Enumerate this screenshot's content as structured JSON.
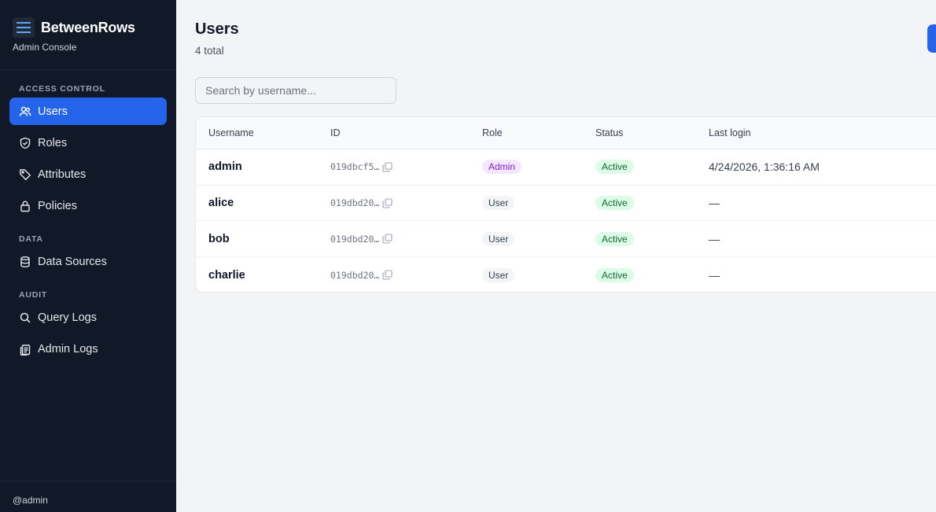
{
  "app": {
    "name": "BetweenRows",
    "subtitle": "Admin Console"
  },
  "sidebar": {
    "sections": [
      {
        "label": "ACCESS CONTROL"
      },
      {
        "label": "DATA"
      },
      {
        "label": "AUDIT"
      }
    ],
    "items": [
      {
        "label": "Users",
        "icon": "users-icon",
        "active": true
      },
      {
        "label": "Roles",
        "icon": "shield-icon"
      },
      {
        "label": "Attributes",
        "icon": "tag-icon"
      },
      {
        "label": "Policies",
        "icon": "lock-icon"
      },
      {
        "label": "Data Sources",
        "icon": "database-icon"
      },
      {
        "label": "Query Logs",
        "icon": "search-icon"
      },
      {
        "label": "Admin Logs",
        "icon": "clipboard-icon"
      }
    ],
    "footer_user": "@admin"
  },
  "page": {
    "title": "Users",
    "count": "4 total"
  },
  "search": {
    "placeholder": "Search by username..."
  },
  "table": {
    "columns": [
      "Username",
      "ID",
      "Role",
      "Status",
      "Last login"
    ],
    "rows": [
      {
        "username": "admin",
        "id": "019dbcf5…",
        "role": "Admin",
        "status": "Active",
        "last_login": "4/24/2026, 1:36:16 AM"
      },
      {
        "username": "alice",
        "id": "019dbd20…",
        "role": "User",
        "status": "Active",
        "last_login": "—"
      },
      {
        "username": "bob",
        "id": "019dbd20…",
        "role": "User",
        "status": "Active",
        "last_login": "—"
      },
      {
        "username": "charlie",
        "id": "019dbd20…",
        "role": "User",
        "status": "Active",
        "last_login": "—"
      }
    ]
  },
  "colors": {
    "sidebar_bg": "#111827",
    "accent": "#2563eb",
    "active_badge": "#dcfce7",
    "admin_badge": "#f3e8ff"
  }
}
